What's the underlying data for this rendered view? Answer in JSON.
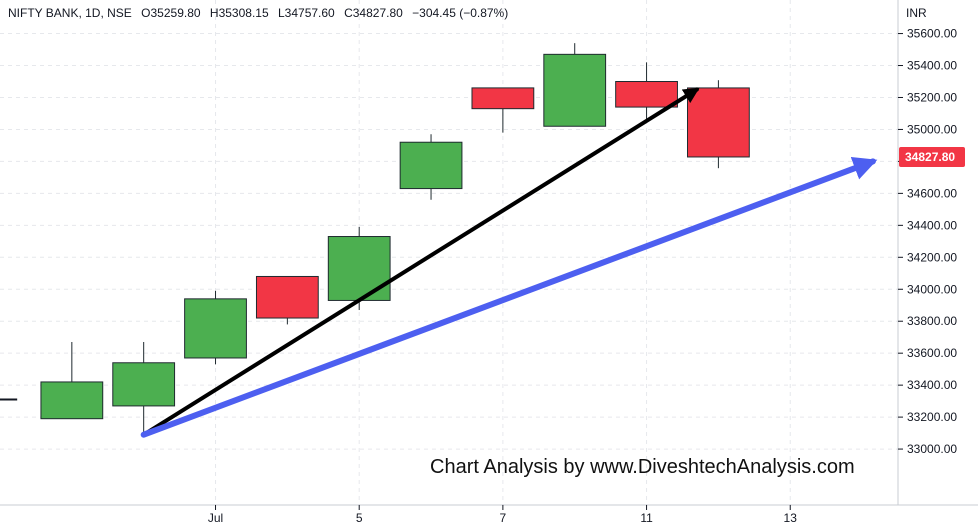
{
  "header": {
    "symbol": "NIFTY BANK, 1D, NSE",
    "open_label": "O",
    "open": "35259.80",
    "high_label": "H",
    "high": "35308.15",
    "low_label": "L",
    "low": "34757.60",
    "close_label": "C",
    "close": "34827.80",
    "change": "−304.45 (−0.87%)"
  },
  "currency": "INR",
  "last_price_label": "34827.80",
  "watermark": "Chart Analysis by www.DiveshtechAnalysis.com",
  "colors": {
    "up": "#4caf50",
    "down": "#f23645",
    "trend_arrow_black": "#000000",
    "trend_arrow_blue": "#4d5ff0",
    "grid": "#e6e8ec"
  },
  "chart_data": {
    "type": "candlestick",
    "title": "NIFTY BANK, 1D, NSE",
    "y_ticks": [
      33000,
      33200,
      33400,
      33600,
      33800,
      34000,
      34200,
      34400,
      34600,
      34800,
      35000,
      35200,
      35400,
      35600
    ],
    "y_tick_labels": [
      "33000.00",
      "33200.00",
      "33400.00",
      "33600.00",
      "33800.00",
      "34000.00",
      "34200.00",
      "34400.00",
      "34600.00",
      "34800.00",
      "35000.00",
      "35200.00",
      "35400.00",
      "35600.00"
    ],
    "ylim": [
      32650,
      35810
    ],
    "x_labels": [
      {
        "label": "Jul",
        "index": 2
      },
      {
        "label": "5",
        "index": 4
      },
      {
        "label": "7",
        "index": 6
      },
      {
        "label": "11",
        "index": 8
      },
      {
        "label": "13",
        "index": 10
      }
    ],
    "x_range": [
      -1,
      11.5
    ],
    "candles": [
      {
        "index": 0,
        "open": 33190,
        "high": 33670,
        "low": 33190,
        "close": 33420
      },
      {
        "index": 1,
        "open": 33270,
        "high": 33670,
        "low": 33090,
        "close": 33540
      },
      {
        "index": 2,
        "open": 33570,
        "high": 33990,
        "low": 33530,
        "close": 33940
      },
      {
        "index": 3,
        "open": 34080,
        "high": 34080,
        "low": 33780,
        "close": 33820
      },
      {
        "index": 4,
        "open": 33930,
        "high": 34390,
        "low": 33870,
        "close": 34330
      },
      {
        "index": 5,
        "open": 34630,
        "high": 34970,
        "low": 34560,
        "close": 34920
      },
      {
        "index": 6,
        "open": 35260,
        "high": 35260,
        "low": 34980,
        "close": 35130
      },
      {
        "index": 7,
        "open": 35020,
        "high": 35540,
        "low": 35020,
        "close": 35470
      },
      {
        "index": 8,
        "open": 35300,
        "high": 35420,
        "low": 35060,
        "close": 35140
      },
      {
        "index": 9,
        "open": 35259.8,
        "high": 35308.15,
        "low": 34757.6,
        "close": 34827.8
      }
    ],
    "prior_close_marker": {
      "index": -0.9,
      "value": 33310
    },
    "trend_arrows": [
      {
        "color": "black",
        "from": {
          "index": 1,
          "value": 33090
        },
        "to": {
          "index": 8.7,
          "value": 35250
        }
      },
      {
        "color": "blue",
        "from": {
          "index": 1,
          "value": 33090
        },
        "to": {
          "index": 11.15,
          "value": 34800
        }
      }
    ],
    "last_price": 34827.8
  }
}
